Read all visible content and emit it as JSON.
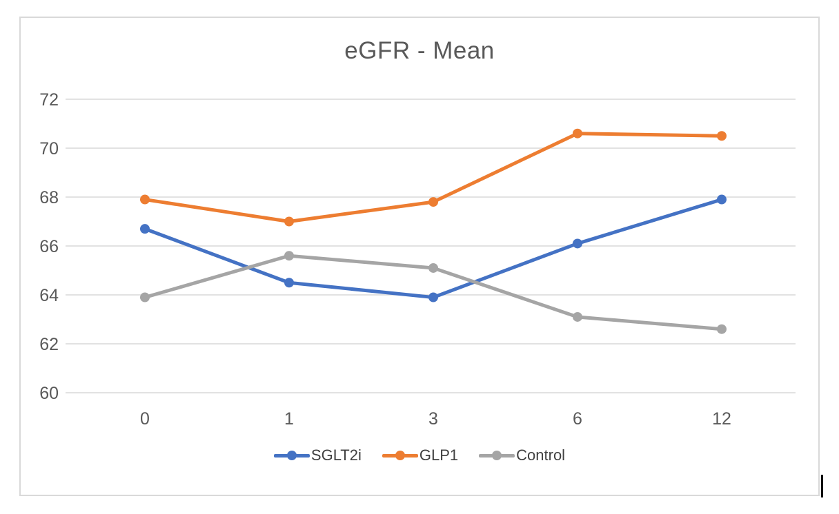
{
  "chart_data": {
    "type": "line",
    "title": "eGFR - Mean",
    "categories": [
      "0",
      "1",
      "3",
      "6",
      "12"
    ],
    "series": [
      {
        "name": "SGLT2i",
        "color": "#4472C4",
        "values": [
          66.7,
          64.5,
          63.9,
          66.1,
          67.9
        ]
      },
      {
        "name": "GLP1",
        "color": "#ED7D31",
        "values": [
          67.9,
          67.0,
          67.8,
          70.6,
          70.5
        ]
      },
      {
        "name": "Control",
        "color": "#A5A5A5",
        "values": [
          63.9,
          65.6,
          65.1,
          63.1,
          62.6
        ]
      }
    ],
    "y_ticks": [
      60,
      62,
      64,
      66,
      68,
      70,
      72
    ],
    "ylim": [
      60,
      72
    ],
    "xlabel": "",
    "ylabel": "",
    "grid": true,
    "marker": "circle",
    "legend_position": "bottom",
    "colors": {
      "gridline": "#d9d9d9",
      "axis_text": "#595959",
      "title_text": "#595959",
      "legend_text": "#404040",
      "chart_border": "#d9d9d9"
    }
  },
  "artifacts": {
    "text_cursor": "visible"
  }
}
